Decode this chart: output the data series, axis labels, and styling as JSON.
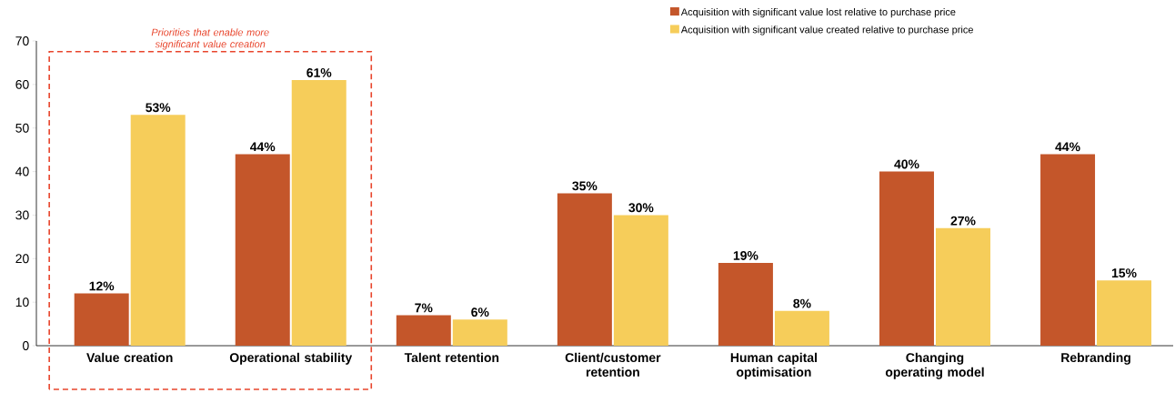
{
  "chart_data": {
    "type": "bar",
    "categories": [
      "Value creation",
      "Operational stability",
      "Talent retention",
      "Client/customer retention",
      "Human capital optimisation",
      "Changing operating model",
      "Rebranding"
    ],
    "series": [
      {
        "name": "Acquisition with significant value lost relative to purchase price",
        "color": "#c4562a",
        "values": [
          12,
          44,
          7,
          35,
          19,
          40,
          44
        ],
        "value_labels": [
          "12%",
          "44%",
          "7%",
          "35%",
          "19%",
          "40%",
          "44%"
        ]
      },
      {
        "name": "Acquisition with significant value created relative to purchase price",
        "color": "#f6cd5a",
        "values": [
          53,
          61,
          6,
          30,
          8,
          27,
          15
        ],
        "value_labels": [
          "53%",
          "61%",
          "6%",
          "30%",
          "8%",
          "27%",
          "15%"
        ]
      }
    ],
    "ylim": [
      0,
      70
    ],
    "yticks": [
      0,
      10,
      20,
      30,
      40,
      50,
      60,
      70
    ],
    "legend": "top right",
    "annotations": [
      "Priorities that enable more significant value creation"
    ]
  }
}
